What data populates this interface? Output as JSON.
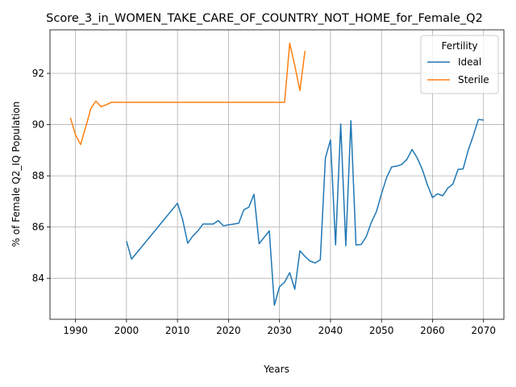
{
  "chart_data": {
    "type": "line",
    "title": "Score_3_in_WOMEN_TAKE_CARE_OF_COUNTRY_NOT_HOME_for_Female_Q2",
    "xlabel": "Years",
    "ylabel": "% of Female Q2_IQ Population",
    "xlim": [
      1985,
      2074
    ],
    "ylim": [
      82.4,
      93.7
    ],
    "xticks": [
      1990,
      2000,
      2010,
      2020,
      2030,
      2040,
      2050,
      2060,
      2070
    ],
    "yticks": [
      84,
      86,
      88,
      90,
      92
    ],
    "grid": true,
    "legend": {
      "title": "Fertility",
      "placement": "top-right"
    },
    "series": [
      {
        "name": "Ideal",
        "color": "#1f77b4",
        "points": [
          [
            2000,
            85.45
          ],
          [
            2001,
            84.75
          ],
          [
            2010,
            86.93
          ],
          [
            2011,
            86.3
          ],
          [
            2012,
            85.37
          ],
          [
            2013,
            85.65
          ],
          [
            2014,
            85.85
          ],
          [
            2015,
            86.12
          ],
          [
            2016,
            86.12
          ],
          [
            2017,
            86.12
          ],
          [
            2018,
            86.25
          ],
          [
            2019,
            86.05
          ],
          [
            2022,
            86.15
          ],
          [
            2023,
            86.67
          ],
          [
            2024,
            86.78
          ],
          [
            2025,
            87.28
          ],
          [
            2026,
            85.35
          ],
          [
            2027,
            85.6
          ],
          [
            2028,
            85.85
          ],
          [
            2029,
            82.95
          ],
          [
            2030,
            83.67
          ],
          [
            2031,
            83.85
          ],
          [
            2032,
            84.22
          ],
          [
            2033,
            83.57
          ],
          [
            2034,
            85.07
          ],
          [
            2035,
            84.85
          ],
          [
            2036,
            84.67
          ],
          [
            2037,
            84.6
          ],
          [
            2038,
            84.72
          ],
          [
            2039,
            88.7
          ],
          [
            2040,
            89.4
          ],
          [
            2041,
            85.3
          ],
          [
            2042,
            90.03
          ],
          [
            2043,
            85.27
          ],
          [
            2044,
            90.15
          ],
          [
            2045,
            85.3
          ],
          [
            2046,
            85.32
          ],
          [
            2047,
            85.62
          ],
          [
            2048,
            86.18
          ],
          [
            2049,
            86.6
          ],
          [
            2050,
            87.3
          ],
          [
            2051,
            87.93
          ],
          [
            2052,
            88.35
          ],
          [
            2053,
            88.38
          ],
          [
            2054,
            88.45
          ],
          [
            2055,
            88.65
          ],
          [
            2056,
            89.03
          ],
          [
            2057,
            88.7
          ],
          [
            2058,
            88.25
          ],
          [
            2059,
            87.65
          ],
          [
            2060,
            87.15
          ],
          [
            2061,
            87.3
          ],
          [
            2062,
            87.22
          ],
          [
            2063,
            87.52
          ],
          [
            2064,
            87.68
          ],
          [
            2065,
            88.25
          ],
          [
            2066,
            88.27
          ],
          [
            2067,
            89.0
          ],
          [
            2068,
            89.57
          ],
          [
            2069,
            90.2
          ],
          [
            2070,
            90.18
          ]
        ]
      },
      {
        "name": "Sterile",
        "color": "#ff7f0e",
        "points": [
          [
            1989,
            90.27
          ],
          [
            1990,
            89.6
          ],
          [
            1991,
            89.22
          ],
          [
            1992,
            89.9
          ],
          [
            1993,
            90.62
          ],
          [
            1994,
            90.92
          ],
          [
            1995,
            90.7
          ],
          [
            1996,
            90.77
          ],
          [
            1997,
            90.87
          ],
          [
            2031,
            90.87
          ],
          [
            2032,
            93.18
          ],
          [
            2033,
            92.3
          ],
          [
            2034,
            91.33
          ],
          [
            2035,
            92.88
          ]
        ]
      }
    ]
  }
}
